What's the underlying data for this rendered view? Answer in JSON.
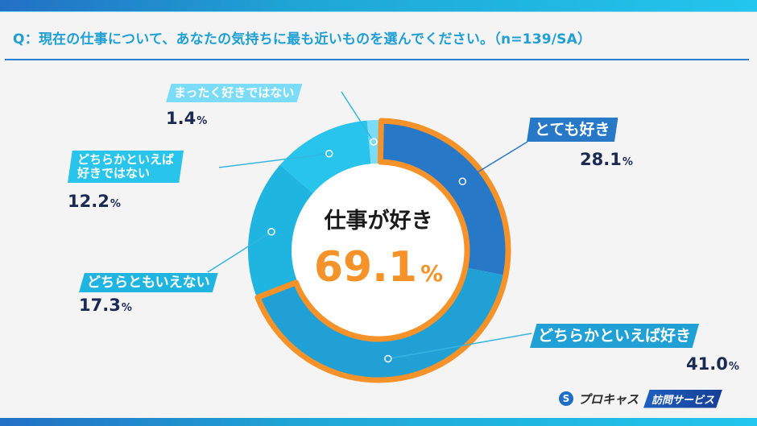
{
  "header": {
    "question": "Q：現在の仕事について、あなたの気持ちに最も近いものを選んでください。（n=139/SA）"
  },
  "center": {
    "title": "仕事が好き",
    "value": "69.1",
    "unit": "%"
  },
  "labels": {
    "very_like": {
      "text": "とても好き",
      "value": "28.1",
      "unit": "%"
    },
    "somewhat_like": {
      "text": "どちらかといえば好き",
      "value": "41.0",
      "unit": "%"
    },
    "neutral": {
      "text": "どちらともいえない",
      "value": "17.3",
      "unit": "%"
    },
    "somewhat_dislike": {
      "line1": "どちらかといえば",
      "line2": "好きではない",
      "value": "12.2",
      "unit": "%"
    },
    "not_at_all": {
      "text": "まったく好きではない",
      "value": "1.4",
      "unit": "%"
    }
  },
  "brand": {
    "logo_glyph": "S",
    "name": "プロキャス",
    "service": "訪問サービス"
  },
  "colors": {
    "very_like": "#2878c8",
    "somewhat_like": "#20a0d4",
    "neutral": "#20b4e0",
    "somewhat_dislike": "#28c4ec",
    "not_at_all": "#7adcf8",
    "highlight": "#f5932a",
    "value_text": "#1b2a52"
  },
  "chart_data": {
    "type": "pie",
    "variant": "donut",
    "title": "Q：現在の仕事について、あなたの気持ちに最も近いものを選んでください。（n=139/SA）",
    "n": 139,
    "categories": [
      "とても好き",
      "どちらかといえば好き",
      "どちらともいえない",
      "どちらかといえば好きではない",
      "まったく好きではない"
    ],
    "values": [
      28.1,
      41.0,
      17.3,
      12.2,
      1.4
    ],
    "unit": "%",
    "highlight": {
      "label": "仕事が好き",
      "categories": [
        "とても好き",
        "どちらかといえば好き"
      ],
      "value": 69.1
    },
    "start_angle": "12 o'clock",
    "direction": "clockwise"
  }
}
